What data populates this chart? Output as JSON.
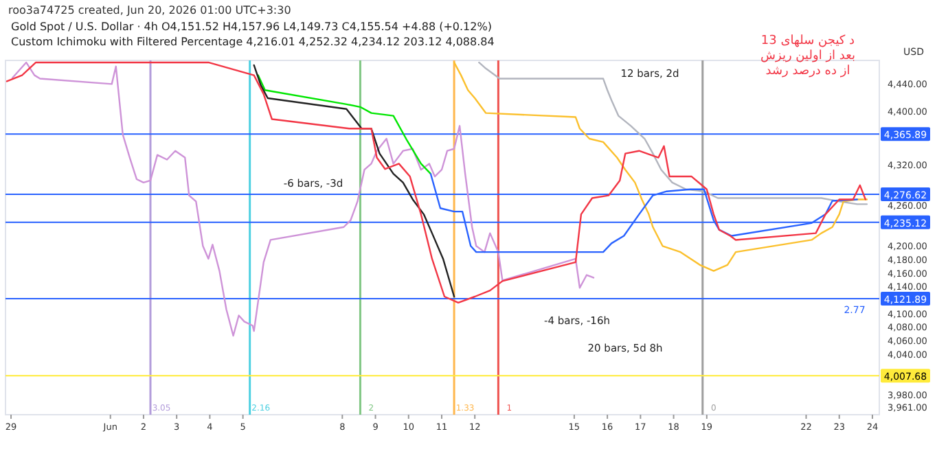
{
  "chart_data": {
    "type": "line",
    "title": "roo3a74725 created, Jun 20, 2026 01:00 UTC+3:30",
    "subtitle": "Gold Spot / U.S. Dollar · 4h   O4,151.52 H4,157.96 L4,149.73 C4,155.54 +4.88 (+0.12%)\nCustom Ichimoku with Filtered Percentage   4,216.01   4,252.32   4,234.12   203.12   4,088.84",
    "ylabel": "USD",
    "xlim": [
      "2026-05-28T20:00",
      "2026-06-24T05:00"
    ],
    "ylim": [
      3950,
      4475
    ],
    "xticks": [
      {
        "value": "2026-05-29",
        "label": "29"
      },
      {
        "value": "2026-06-01",
        "label": "Jun"
      },
      {
        "value": "2026-06-02",
        "label": "2"
      },
      {
        "value": "2026-06-03",
        "label": "3"
      },
      {
        "value": "2026-06-04",
        "label": "4"
      },
      {
        "value": "2026-06-05",
        "label": "5"
      },
      {
        "value": "2026-06-08",
        "label": "8"
      },
      {
        "value": "2026-06-09",
        "label": "9"
      },
      {
        "value": "2026-06-10",
        "label": "10"
      },
      {
        "value": "2026-06-11",
        "label": "11"
      },
      {
        "value": "2026-06-12",
        "label": "12"
      },
      {
        "value": "2026-06-15",
        "label": "15"
      },
      {
        "value": "2026-06-16",
        "label": "16"
      },
      {
        "value": "2026-06-17",
        "label": "17"
      },
      {
        "value": "2026-06-18",
        "label": "18"
      },
      {
        "value": "2026-06-19",
        "label": "19"
      },
      {
        "value": "2026-06-22",
        "label": "22"
      },
      {
        "value": "2026-06-23",
        "label": "23"
      },
      {
        "value": "2026-06-24",
        "label": "24"
      }
    ],
    "yticks": [
      {
        "value": 4440,
        "label": "4,440.00"
      },
      {
        "value": 4400,
        "label": "4,400.00"
      },
      {
        "value": 4320,
        "label": "4,320.00"
      },
      {
        "value": 4260,
        "label": "4,260.00"
      },
      {
        "value": 4200,
        "label": "4,200.00"
      },
      {
        "value": 4180,
        "label": "4,180.00"
      },
      {
        "value": 4160,
        "label": "4,160.00"
      },
      {
        "value": 4140,
        "label": "4,140.00"
      },
      {
        "value": 4100,
        "label": "4,100.00"
      },
      {
        "value": 4080,
        "label": "4,080.00"
      },
      {
        "value": 4060,
        "label": "4,060.00"
      },
      {
        "value": 4040,
        "label": "4,040.00"
      },
      {
        "value": 3980,
        "label": "3,980.00"
      },
      {
        "value": 3961,
        "label": "3,961.00"
      }
    ],
    "grid": false,
    "marker": "none",
    "line_style": "solid",
    "series": [
      {
        "color": "#ce93d8",
        "x": [
          "2026-05-29T01:00",
          "2026-05-29T11:00",
          "2026-05-29T17:00",
          "2026-05-29T21:00",
          "2026-06-01T01:00",
          "2026-06-01T04:00",
          "2026-06-01T09:00",
          "2026-06-01T14:00",
          "2026-06-01T19:00",
          "2026-06-02T00:00",
          "2026-06-02T05:00",
          "2026-06-02T10:00",
          "2026-06-02T17:00",
          "2026-06-02T23:00",
          "2026-06-03T06:00",
          "2026-06-03T09:00",
          "2026-06-03T14:00",
          "2026-06-03T19:00",
          "2026-06-03T23:00",
          "2026-06-04T02:00",
          "2026-06-04T07:00",
          "2026-06-04T12:00",
          "2026-06-04T17:00",
          "2026-06-04T21:00",
          "2026-06-05T01:00",
          "2026-06-05T07:00",
          "2026-06-05T08:00",
          "2026-06-05T15:00",
          "2026-06-05T20:00",
          "2026-06-08T01:00",
          "2026-06-08T06:00",
          "2026-06-08T11:00",
          "2026-06-08T16:00",
          "2026-06-08T21:00",
          "2026-06-09T01:00",
          "2026-06-09T08:00",
          "2026-06-09T13:00",
          "2026-06-09T20:00",
          "2026-06-10T03:00",
          "2026-06-10T09:00",
          "2026-06-10T15:00",
          "2026-06-10T19:00",
          "2026-06-11T00:00",
          "2026-06-11T04:00",
          "2026-06-11T09:00",
          "2026-06-11T13:00",
          "2026-06-11T17:00",
          "2026-06-11T22:00",
          "2026-06-12T01:00",
          "2026-06-12T07:00",
          "2026-06-12T11:00",
          "2026-06-12T17:00",
          "2026-06-12T20:00",
          "2026-06-15T01:00",
          "2026-06-15T04:00",
          "2026-06-15T09:00",
          "2026-06-15T14:00"
        ],
        "values": [
          4449,
          4472,
          4453,
          4448,
          4440,
          4466,
          4365,
          4331,
          4299,
          4294,
          4297,
          4335,
          4328,
          4341,
          4331,
          4275,
          4266,
          4200,
          4181,
          4202,
          4163,
          4106,
          4067,
          4097,
          4088,
          4082,
          4074,
          4176,
          4209,
          4228,
          4238,
          4266,
          4313,
          4322,
          4341,
          4359,
          4322,
          4341,
          4344,
          4313,
          4322,
          4303,
          4313,
          4341,
          4344,
          4378,
          4307,
          4228,
          4200,
          4191,
          4219,
          4191,
          4149,
          4181,
          4138,
          4157,
          4153
        ]
      },
      {
        "color": "#b2b5be",
        "x": [
          "2026-06-12T03:00",
          "2026-06-12T08:00",
          "2026-06-12T18:00",
          "2026-06-15T21:00",
          "2026-06-16T00:00",
          "2026-06-16T03:00",
          "2026-06-16T08:00",
          "2026-06-16T17:00",
          "2026-06-17T03:00",
          "2026-06-17T09:00",
          "2026-06-17T15:00",
          "2026-06-17T23:00",
          "2026-06-18T09:00",
          "2026-06-18T22:00",
          "2026-06-19T08:00",
          "2026-06-22T11:00",
          "2026-06-23T00:00",
          "2026-06-23T13:00",
          "2026-06-23T20:00"
        ],
        "values": [
          4472,
          4463,
          4448,
          4448,
          4431,
          4416,
          4393,
          4378,
          4359,
          4337,
          4313,
          4294,
          4284,
          4281,
          4271,
          4271,
          4266,
          4262,
          4262
        ]
      },
      {
        "color": "#fbc02d",
        "x": [
          "2026-06-11T09:00",
          "2026-06-11T14:00",
          "2026-06-11T19:00",
          "2026-06-12T00:00",
          "2026-06-12T08:00",
          "2026-06-15T01:00",
          "2026-06-15T04:00",
          "2026-06-15T11:00",
          "2026-06-15T21:00",
          "2026-06-16T07:00",
          "2026-06-16T13:00",
          "2026-06-16T20:00",
          "2026-06-17T01:00",
          "2026-06-17T06:00",
          "2026-06-17T09:00",
          "2026-06-17T16:00",
          "2026-06-18T05:00",
          "2026-06-18T19:00",
          "2026-06-19T05:00",
          "2026-06-19T15:00",
          "2026-06-19T21:00",
          "2026-06-22T04:00",
          "2026-06-22T11:00",
          "2026-06-22T19:00",
          "2026-06-23T00:00",
          "2026-06-23T03:00",
          "2026-06-23T13:00",
          "2026-06-23T20:00"
        ],
        "values": [
          4472,
          4453,
          4431,
          4419,
          4397,
          4391,
          4374,
          4359,
          4354,
          4331,
          4313,
          4294,
          4269,
          4247,
          4228,
          4200,
          4191,
          4172,
          4163,
          4172,
          4191,
          4209,
          4219,
          4228,
          4247,
          4266,
          4269,
          4269
        ]
      },
      {
        "color": "#00e600",
        "x": [
          "2026-06-05T11:00",
          "2026-06-05T16:00",
          "2026-06-08T03:00",
          "2026-06-08T13:00",
          "2026-06-08T21:00",
          "2026-06-09T13:00",
          "2026-06-09T23:00",
          "2026-06-10T09:00",
          "2026-06-10T16:00"
        ],
        "values": [
          4453,
          4431,
          4410,
          4406,
          4397,
          4393,
          4356,
          4322,
          4307
        ]
      },
      {
        "color": "#2962ff",
        "x": [
          "2026-06-10T16:00",
          "2026-06-10T23:00",
          "2026-06-11T09:00",
          "2026-06-11T15:00",
          "2026-06-11T21:00",
          "2026-06-12T01:00",
          "2026-06-15T11:00",
          "2026-06-15T21:00",
          "2026-06-16T03:00",
          "2026-06-16T12:00",
          "2026-06-16T23:00",
          "2026-06-17T09:00",
          "2026-06-17T19:00",
          "2026-06-18T12:00",
          "2026-06-18T22:00",
          "2026-06-19T05:00",
          "2026-06-19T09:00",
          "2026-06-19T18:00",
          "2026-06-22T04:00",
          "2026-06-22T14:00",
          "2026-06-22T19:00",
          "2026-06-23T13:00"
        ],
        "values": [
          4307,
          4256,
          4251,
          4251,
          4200,
          4191,
          4191,
          4191,
          4204,
          4215,
          4247,
          4275,
          4281,
          4284,
          4284,
          4238,
          4224,
          4215,
          4234,
          4247,
          4267,
          4269
        ]
      },
      {
        "color": "#222222",
        "x": [
          "2026-06-05T08:00",
          "2026-06-05T13:00",
          "2026-06-05T18:00",
          "2026-06-08T03:00",
          "2026-06-08T14:00",
          "2026-06-08T21:00",
          "2026-06-09T03:00",
          "2026-06-09T13:00",
          "2026-06-09T20:00",
          "2026-06-10T03:00",
          "2026-06-10T11:00",
          "2026-06-10T17:00",
          "2026-06-11T01:00",
          "2026-06-11T09:00"
        ],
        "values": [
          4468,
          4438,
          4419,
          4403,
          4374,
          4374,
          4337,
          4307,
          4294,
          4269,
          4247,
          4219,
          4181,
          4125
        ]
      },
      {
        "color": "#f23645",
        "x": [
          "2026-05-28T21:00",
          "2026-05-29T08:00",
          "2026-05-29T18:00",
          "2026-06-01T11:00",
          "2026-06-02T13:00",
          "2026-06-03T23:00",
          "2026-06-05T08:00",
          "2026-06-05T15:00",
          "2026-06-05T21:00",
          "2026-06-08T05:00",
          "2026-06-08T21:00",
          "2026-06-09T01:00",
          "2026-06-09T07:00",
          "2026-06-09T17:00",
          "2026-06-10T01:00",
          "2026-06-10T09:00",
          "2026-06-10T17:00",
          "2026-06-11T02:00",
          "2026-06-11T12:00",
          "2026-06-12T00:00",
          "2026-06-12T11:00",
          "2026-06-12T20:00",
          "2026-06-15T01:00",
          "2026-06-15T05:00",
          "2026-06-15T13:00",
          "2026-06-16T01:00",
          "2026-06-16T09:00",
          "2026-06-16T13:00",
          "2026-06-16T23:00",
          "2026-06-17T13:00",
          "2026-06-17T17:00",
          "2026-06-17T21:00",
          "2026-06-18T13:00",
          "2026-06-19T00:00",
          "2026-06-19T05:00",
          "2026-06-19T09:00",
          "2026-06-19T17:00",
          "2026-06-19T21:00",
          "2026-06-22T07:00",
          "2026-06-22T14:00",
          "2026-06-23T00:00",
          "2026-06-23T10:00",
          "2026-06-23T15:00",
          "2026-06-23T19:00"
        ],
        "values": [
          4444,
          4453,
          4472,
          4472,
          4472,
          4472,
          4453,
          4425,
          4388,
          4374,
          4374,
          4331,
          4314,
          4322,
          4303,
          4247,
          4181,
          4125,
          4116,
          4125,
          4134,
          4148,
          4176,
          4247,
          4271,
          4275,
          4297,
          4337,
          4341,
          4331,
          4348,
          4303,
          4303,
          4284,
          4247,
          4224,
          4215,
          4209,
          4219,
          4247,
          4269,
          4269,
          4290,
          4269
        ]
      }
    ],
    "ref_lines": [
      {
        "axis": "x",
        "value": "2026-06-02T05:00",
        "color": "#b39ddb"
      },
      {
        "axis": "x",
        "value": "2026-06-05T05:00",
        "color": "#4dd0e1"
      },
      {
        "axis": "x",
        "value": "2026-06-08T13:00",
        "color": "#81c784"
      },
      {
        "axis": "x",
        "value": "2026-06-11T09:00",
        "color": "#ffb74d"
      },
      {
        "axis": "x",
        "value": "2026-06-12T17:00",
        "color": "#ef5350"
      },
      {
        "axis": "x",
        "value": "2026-06-18T21:00",
        "color": "#9e9e9e"
      },
      {
        "axis": "y",
        "value": 4365.89,
        "label": "4,365.89",
        "color": "#2962ff"
      },
      {
        "axis": "y",
        "value": 4276.62,
        "label": "4,276.62",
        "color": "#2962ff"
      },
      {
        "axis": "y",
        "value": 4235.12,
        "label": "4,235.12",
        "color": "#2962ff"
      },
      {
        "axis": "y",
        "value": 4121.89,
        "label": "4,121.89",
        "color": "#2962ff"
      },
      {
        "axis": "y",
        "value": 4007.68,
        "label": "4,007.68",
        "color": "#ffeb3b"
      }
    ],
    "annotations": [
      "12 bars, 2d",
      "-6 bars, -3d",
      "-4 bars, -16h",
      "20 bars, 5d 8h",
      "د کیجن سلهای 13\nبعد از اولین ریزش\nاز ده درصد رشد",
      "2.77",
      "3.05",
      "2.16",
      "2",
      "1.33",
      "1",
      "0"
    ]
  }
}
